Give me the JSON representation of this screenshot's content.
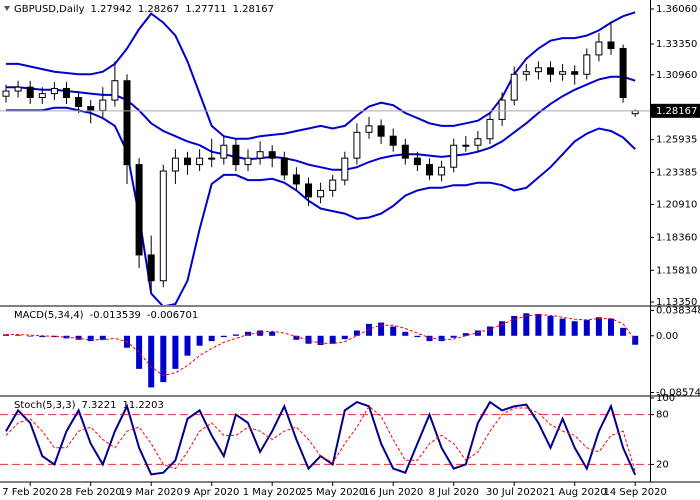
{
  "chart_data": [
    {
      "type": "candlestick",
      "title": "GBPUSD,Daily",
      "categories": [
        null,
        null,
        "7 Feb 2020",
        null,
        null,
        null,
        null,
        "28 Feb 2020",
        null,
        null,
        null,
        null,
        "19 Mar 2020",
        null,
        null,
        null,
        null,
        "9 Apr 2020",
        null,
        null,
        null,
        null,
        "1 May 2020",
        null,
        null,
        null,
        null,
        "25 May 2020",
        null,
        null,
        null,
        null,
        "16 Jun 2020",
        null,
        null,
        null,
        null,
        "8 Jul 2020",
        null,
        null,
        null,
        null,
        "30 Jul 2020",
        null,
        null,
        null,
        null,
        "21 Aug 2020",
        null,
        null,
        null,
        null,
        "14 Sep 2020"
      ],
      "open": [
        1.293,
        1.297,
        1.3,
        1.292,
        1.295,
        1.299,
        1.292,
        1.285,
        1.282,
        1.29,
        1.305,
        1.24,
        1.17,
        1.15,
        1.235,
        1.245,
        1.24,
        1.245,
        1.245,
        1.255,
        1.24,
        1.245,
        1.25,
        1.245,
        1.232,
        1.225,
        1.215,
        1.22,
        1.228,
        1.245,
        1.265,
        1.27,
        1.262,
        1.255,
        1.245,
        1.24,
        1.232,
        1.238,
        1.255,
        1.255,
        1.26,
        1.275,
        1.29,
        1.31,
        1.312,
        1.315,
        1.31,
        1.312,
        1.31,
        1.325,
        1.335,
        1.33,
        1.27942
      ],
      "high": [
        1.302,
        1.305,
        1.305,
        1.3,
        1.304,
        1.304,
        1.297,
        1.29,
        1.3,
        1.32,
        1.31,
        1.245,
        1.185,
        1.24,
        1.252,
        1.25,
        1.252,
        1.26,
        1.262,
        1.26,
        1.252,
        1.258,
        1.255,
        1.25,
        1.238,
        1.23,
        1.226,
        1.232,
        1.25,
        1.272,
        1.277,
        1.275,
        1.268,
        1.26,
        1.25,
        1.245,
        1.243,
        1.26,
        1.262,
        1.266,
        1.28,
        1.296,
        1.316,
        1.318,
        1.32,
        1.32,
        1.318,
        1.317,
        1.33,
        1.342,
        1.35,
        1.333,
        1.28267
      ],
      "low": [
        1.288,
        1.292,
        1.287,
        1.287,
        1.29,
        1.287,
        1.28,
        1.272,
        1.277,
        1.285,
        1.225,
        1.16,
        1.142,
        1.145,
        1.225,
        1.232,
        1.235,
        1.238,
        1.24,
        1.235,
        1.235,
        1.24,
        1.238,
        1.228,
        1.22,
        1.208,
        1.21,
        1.215,
        1.224,
        1.24,
        1.26,
        1.256,
        1.25,
        1.24,
        1.235,
        1.228,
        1.227,
        1.234,
        1.25,
        1.25,
        1.256,
        1.27,
        1.286,
        1.305,
        1.306,
        1.304,
        1.305,
        1.302,
        1.306,
        1.32,
        1.325,
        1.288,
        1.27711
      ],
      "close": [
        1.297,
        1.3,
        1.292,
        1.295,
        1.299,
        1.292,
        1.285,
        1.282,
        1.29,
        1.305,
        1.24,
        1.17,
        1.15,
        1.235,
        1.245,
        1.24,
        1.245,
        1.245,
        1.255,
        1.24,
        1.245,
        1.25,
        1.245,
        1.232,
        1.225,
        1.215,
        1.22,
        1.228,
        1.245,
        1.265,
        1.27,
        1.262,
        1.255,
        1.245,
        1.24,
        1.232,
        1.238,
        1.255,
        1.255,
        1.26,
        1.275,
        1.29,
        1.31,
        1.312,
        1.315,
        1.31,
        1.312,
        1.31,
        1.325,
        1.335,
        1.33,
        1.292,
        1.28167
      ],
      "series": [
        {
          "color": "#0000cd",
          "values": [
            1.318,
            1.318,
            1.316,
            1.314,
            1.312,
            1.311,
            1.31,
            1.31,
            1.312,
            1.318,
            1.33,
            1.345,
            1.357,
            1.35,
            1.34,
            1.32,
            1.295,
            1.27,
            1.262,
            1.26,
            1.26,
            1.262,
            1.263,
            1.264,
            1.266,
            1.268,
            1.27,
            1.268,
            1.27,
            1.278,
            1.285,
            1.288,
            1.286,
            1.28,
            1.276,
            1.272,
            1.27,
            1.27,
            1.272,
            1.274,
            1.28,
            1.292,
            1.31,
            1.322,
            1.33,
            1.336,
            1.338,
            1.338,
            1.34,
            1.344,
            1.35,
            1.355,
            1.358
          ]
        },
        {
          "color": "#0000cd",
          "values": [
            1.3,
            1.3,
            1.299,
            1.298,
            1.298,
            1.297,
            1.296,
            1.295,
            1.294,
            1.294,
            1.29,
            1.282,
            1.272,
            1.266,
            1.262,
            1.258,
            1.255,
            1.25,
            1.248,
            1.246,
            1.244,
            1.245,
            1.246,
            1.245,
            1.243,
            1.24,
            1.238,
            1.236,
            1.236,
            1.238,
            1.242,
            1.245,
            1.247,
            1.248,
            1.248,
            1.247,
            1.246,
            1.247,
            1.248,
            1.25,
            1.253,
            1.258,
            1.265,
            1.272,
            1.28,
            1.287,
            1.293,
            1.298,
            1.302,
            1.306,
            1.308,
            1.308,
            1.305
          ]
        },
        {
          "color": "#0000cd",
          "values": [
            1.282,
            1.282,
            1.282,
            1.282,
            1.284,
            1.284,
            1.282,
            1.28,
            1.276,
            1.27,
            1.25,
            1.2,
            1.14,
            1.13,
            1.132,
            1.15,
            1.19,
            1.225,
            1.232,
            1.232,
            1.228,
            1.228,
            1.229,
            1.226,
            1.22,
            1.212,
            1.206,
            1.204,
            1.202,
            1.198,
            1.199,
            1.202,
            1.208,
            1.216,
            1.22,
            1.222,
            1.222,
            1.224,
            1.224,
            1.226,
            1.226,
            1.224,
            1.22,
            1.222,
            1.23,
            1.238,
            1.248,
            1.258,
            1.264,
            1.268,
            1.266,
            1.261,
            1.252
          ]
        }
      ],
      "ylim": [
        1.1312,
        1.366
      ],
      "yticks": [
        {
          "value": 1.3606,
          "label": "1.36060"
        },
        {
          "value": 1.3335,
          "label": "1.33350"
        },
        {
          "value": 1.3096,
          "label": "1.30960"
        },
        1.25935,
        1.23385,
        {
          "value": 1.2091,
          "label": "1.20910"
        },
        {
          "value": 1.1836,
          "label": "1.18360"
        },
        {
          "value": 1.1581,
          "label": "1.15810"
        },
        {
          "value": 1.1335,
          "label": "1.13350"
        }
      ]
    },
    {
      "type": "bar",
      "title": "MACD(5,34,4)",
      "values": [
        0.002,
        0.001,
        -0.001,
        -0.002,
        -0.002,
        -0.004,
        -0.006,
        -0.008,
        -0.006,
        0.0,
        -0.018,
        -0.05,
        -0.078,
        -0.07,
        -0.05,
        -0.03,
        -0.015,
        -0.008,
        -0.002,
        0.002,
        0.006,
        0.008,
        0.006,
        0.0,
        -0.006,
        -0.012,
        -0.014,
        -0.012,
        -0.005,
        0.008,
        0.018,
        0.02,
        0.014,
        0.006,
        -0.002,
        -0.008,
        -0.008,
        -0.003,
        0.004,
        0.008,
        0.014,
        0.022,
        0.03,
        0.034,
        0.033,
        0.03,
        0.026,
        0.022,
        0.024,
        0.028,
        0.026,
        0.012,
        -0.013539
      ],
      "color": "#0000cd",
      "series": [
        {
          "color": "#ff0000",
          "values": [
            0.002,
            0.002,
            0.001,
            0.0,
            -0.001,
            -0.002,
            -0.004,
            -0.006,
            -0.006,
            -0.004,
            -0.009,
            -0.025,
            -0.047,
            -0.06,
            -0.056,
            -0.045,
            -0.03,
            -0.019,
            -0.01,
            -0.004,
            0.002,
            0.005,
            0.007,
            0.004,
            -0.001,
            -0.007,
            -0.011,
            -0.012,
            -0.009,
            0.0,
            0.01,
            0.016,
            0.016,
            0.011,
            0.004,
            -0.003,
            -0.006,
            -0.005,
            0.0,
            0.005,
            0.01,
            0.017,
            0.025,
            0.03,
            0.032,
            0.031,
            0.028,
            0.025,
            0.024,
            0.026,
            0.026,
            0.018,
            -0.006701
          ]
        }
      ],
      "ylim": [
        -0.0895,
        0.042
      ],
      "yticks": [
        0.038348,
        {
          "value": 0,
          "label": "0.00"
        },
        -0.085748
      ]
    },
    {
      "type": "line",
      "title": "Stoch(5,3,3)",
      "series": [
        {
          "color": "#00008b",
          "values": [
            60,
            85,
            70,
            30,
            20,
            60,
            85,
            45,
            20,
            60,
            90,
            40,
            8,
            10,
            25,
            75,
            85,
            55,
            30,
            80,
            70,
            35,
            60,
            90,
            50,
            15,
            30,
            20,
            85,
            95,
            90,
            45,
            15,
            10,
            45,
            80,
            40,
            15,
            20,
            70,
            95,
            85,
            90,
            92,
            70,
            40,
            75,
            40,
            15,
            60,
            90,
            40,
            7.3221
          ]
        },
        {
          "color": "#ff0000",
          "values": [
            55,
            70,
            75,
            60,
            40,
            40,
            60,
            65,
            50,
            40,
            60,
            65,
            45,
            20,
            15,
            35,
            60,
            70,
            55,
            55,
            65,
            60,
            50,
            60,
            65,
            50,
            30,
            22,
            45,
            65,
            90,
            78,
            50,
            25,
            25,
            45,
            55,
            45,
            25,
            35,
            60,
            80,
            88,
            88,
            82,
            68,
            60,
            55,
            40,
            35,
            55,
            60,
            11.2203
          ]
        }
      ],
      "ylim": [
        0,
        100
      ],
      "yticks": [
        100,
        80,
        20
      ],
      "levels": [
        80,
        20
      ],
      "level_color": "#e03030"
    }
  ]
}
